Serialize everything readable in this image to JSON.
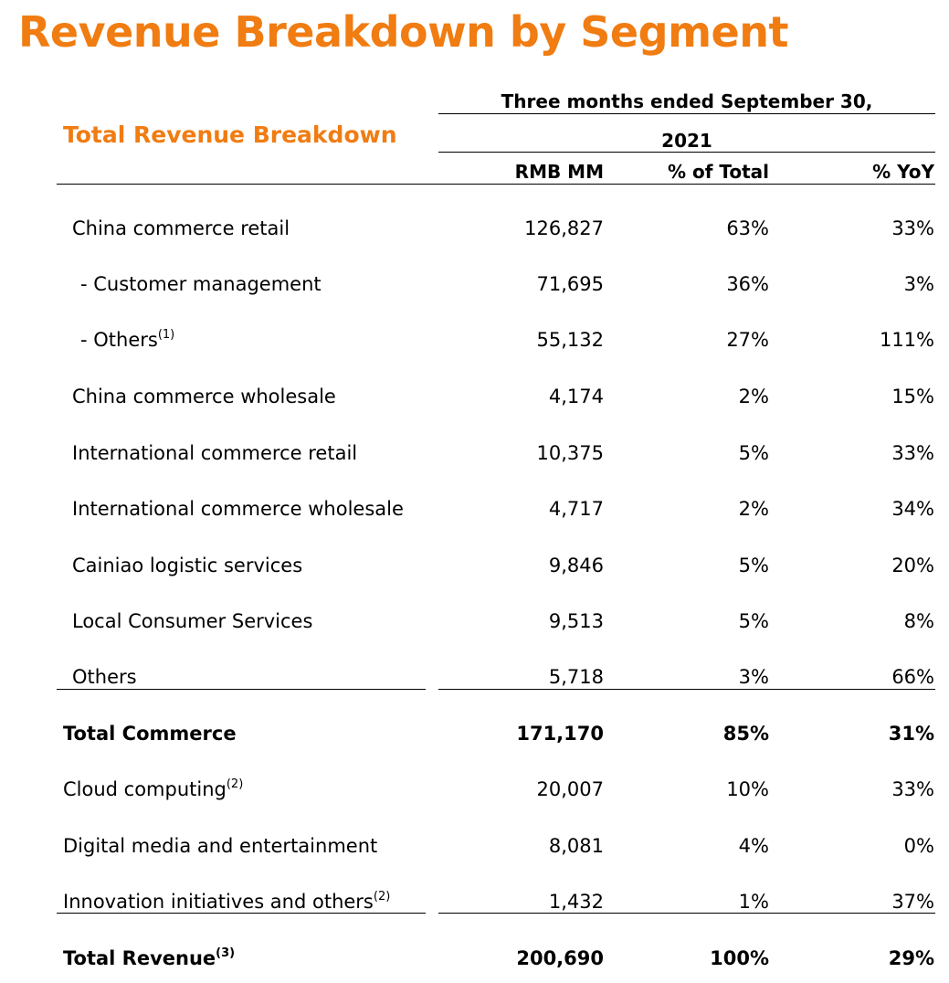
{
  "title": "Revenue Breakdown by Segment",
  "section_title": "Total Revenue Breakdown",
  "period_line1": "Three months ended September 30,",
  "period_line2": "2021",
  "columns": [
    "RMB MM",
    "% of Total",
    "% YoY"
  ],
  "accent_color": "#F07C12",
  "rows": [
    {
      "label": "China commerce retail",
      "note": "",
      "rmb": "126,827",
      "pct": "63%",
      "yoy": "33%"
    },
    {
      "label": "- Customer management",
      "note": "",
      "rmb": "71,695",
      "pct": "36%",
      "yoy": "3%"
    },
    {
      "label": "- Others",
      "note": "(1)",
      "rmb": "55,132",
      "pct": "27%",
      "yoy": "111%"
    },
    {
      "label": "China commerce wholesale",
      "note": "",
      "rmb": "4,174",
      "pct": "2%",
      "yoy": "15%"
    },
    {
      "label": "International commerce retail",
      "note": "",
      "rmb": "10,375",
      "pct": "5%",
      "yoy": "33%"
    },
    {
      "label": "International commerce wholesale",
      "note": "",
      "rmb": "4,717",
      "pct": "2%",
      "yoy": "34%"
    },
    {
      "label": "Cainiao logistic services",
      "note": "",
      "rmb": "9,846",
      "pct": "5%",
      "yoy": "20%"
    },
    {
      "label": "Local Consumer Services",
      "note": "",
      "rmb": "9,513",
      "pct": "5%",
      "yoy": "8%"
    },
    {
      "label": "Others",
      "note": "",
      "rmb": "5,718",
      "pct": "3%",
      "yoy": "66%"
    },
    {
      "label": "Total Commerce",
      "note": "",
      "rmb": "171,170",
      "pct": "85%",
      "yoy": "31%"
    },
    {
      "label": "Cloud computing",
      "note": "(2)",
      "rmb": "20,007",
      "pct": "10%",
      "yoy": "33%"
    },
    {
      "label": "Digital media and entertainment",
      "note": "",
      "rmb": "8,081",
      "pct": "4%",
      "yoy": "0%"
    },
    {
      "label": "Innovation initiatives and others",
      "note": "(2)",
      "rmb": "1,432",
      "pct": "1%",
      "yoy": "37%"
    },
    {
      "label": "Total Revenue",
      "note": "(3)",
      "rmb": "200,690",
      "pct": "100%",
      "yoy": "29%"
    }
  ]
}
